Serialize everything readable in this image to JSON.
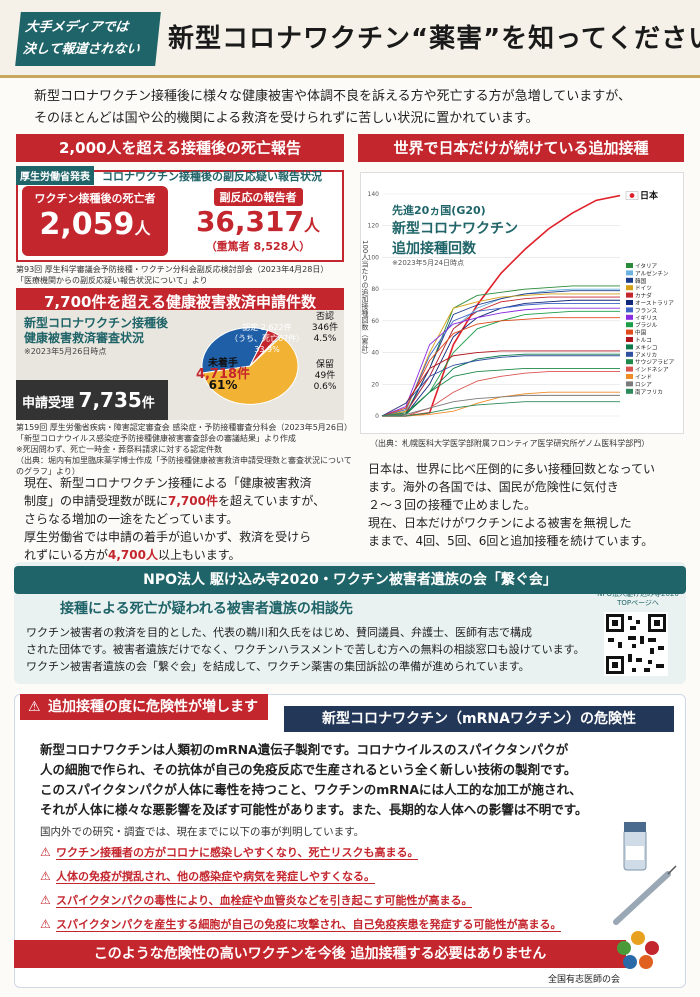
{
  "header": {
    "tag_line1": "大手メディアでは",
    "tag_line2": "決して報道されない",
    "title": "新型コロナワクチン“薬害”を知ってください"
  },
  "intro": {
    "line1": "新型コロナワクチン接種後に様々な健康被害や体調不良を訴える方や死亡する方が急増していますが、",
    "line2": "そのほとんどは国や公的機関による救済を受けられずに苦しい状況に置かれています。"
  },
  "deaths": {
    "heading": "2,000人を超える接種後の死亡報告",
    "mhlw_tag": "厚生労働省発表",
    "subtitle": "コロナワクチン接種後の副反応疑い報告状況",
    "deaths_label": "ワクチン接種後の死亡者",
    "deaths_value": "2,059",
    "deaths_unit": "人",
    "reports_label": "副反応の報告者",
    "reports_value": "36,317",
    "reports_unit": "人",
    "severe": "（重篤者 8,528人）",
    "source1": "第93回 厚生科学審議会予防接種・ワクチン分科会副反応検討部会（2023年4月28日）",
    "source2": "「医療機関からの副反応疑い報告状況について」より"
  },
  "relief": {
    "heading": "7,700件を超える健康被害救済申請件数",
    "box_title1": "新型コロナワクチン接種後",
    "box_title2": "健康被害救済審査状況",
    "box_date": "※2023年5月26日時点",
    "unstarted_label": "未着手",
    "unstarted_value": "4,718件",
    "unstarted_pct": "61%",
    "approved_label": "認定 2,622件",
    "approved_sub": "（うち、死亡67件）",
    "approved_pct": "33.9%",
    "denied_label": "否認",
    "denied_value": "346件",
    "denied_pct": "4.5%",
    "hold_label": "保留",
    "hold_value": "49件",
    "hold_pct": "0.6%",
    "received_label": "申請受理",
    "received_value": "7,735",
    "received_unit": "件",
    "source1": "第159回 厚生労働省疾病・障害認定審査会 感染症・予防接種審査分科会（2023年5月26日）",
    "source2": "「新型コロナウイルス感染症予防接種健康被害審査部会の審議結果」より作成",
    "source3": "※死因問わず、死亡一時金・葬祭料請求に対する認定件数",
    "source4": "（出典：堀内有加里臨床薬学博士作成「予防接種健康被害救済申請受理数と審査状況についてのグラフ」より）",
    "pie_colors": {
      "unstarted": "#f2b233",
      "approved": "#1f5fa8",
      "denied": "#c4262e",
      "hold": "#555555"
    }
  },
  "left_body": {
    "p1_a": "現在、新型コロナワクチン接種による「健康被害救済",
    "p1_b": "制度」の申請受理数が既に",
    "p1_red": "7,700件",
    "p1_c": "を超えていますが、",
    "p1_d": "さらなる増加の一途をたどっています。",
    "p2_a": "厚生労働省では申請の着手が追いかず、救済を受けら",
    "p2_b": "れずにいる方が",
    "p2_red": "4,700人",
    "p2_c": "以上もいます。"
  },
  "booster": {
    "heading": "世界で日本だけが続けている追加接種",
    "chart_title1": "先進20ヵ国(G20)",
    "chart_title2": "新型コロナワクチン",
    "chart_title3": "追加接種回数",
    "chart_date": "※2023年5月24日時点",
    "ylabel": "100人当たりの追加接種回数（累計）",
    "source": "（出典：札幌医科大学医学部附属フロンティア医学研究所ゲノム医科学部門）"
  },
  "chart_data": {
    "type": "line",
    "title": "先進20ヵ国(G20) 新型コロナワクチン 追加接種回数",
    "ylabel": "100人当たりの追加接種回数（累計）",
    "ylim": [
      0,
      140
    ],
    "yticks": [
      0,
      20,
      40,
      60,
      80,
      100,
      120,
      140
    ],
    "x": [
      0,
      1,
      2,
      3,
      4,
      5,
      6,
      7,
      8,
      9,
      10
    ],
    "series": [
      {
        "name": "日本",
        "color": "#e0202a",
        "values": [
          0,
          0,
          2,
          45,
          70,
          90,
          105,
          118,
          128,
          136,
          139
        ]
      },
      {
        "name": "イタリア",
        "color": "#2a8c3a",
        "values": [
          0,
          2,
          30,
          68,
          76,
          78,
          80,
          81,
          82,
          82,
          82
        ]
      },
      {
        "name": "アルゼンチン",
        "color": "#6bb3e0",
        "values": [
          0,
          3,
          25,
          55,
          68,
          74,
          77,
          79,
          80,
          80,
          80
        ]
      },
      {
        "name": "韓国",
        "color": "#1a3a8a",
        "values": [
          0,
          1,
          30,
          64,
          70,
          74,
          77,
          78,
          79,
          79,
          79
        ]
      },
      {
        "name": "ドイツ",
        "color": "#d4a017",
        "values": [
          0,
          3,
          40,
          68,
          72,
          75,
          76,
          77,
          77,
          77,
          77
        ]
      },
      {
        "name": "カナダ",
        "color": "#c4262e",
        "values": [
          0,
          2,
          25,
          55,
          66,
          72,
          74,
          75,
          75,
          75,
          75
        ]
      },
      {
        "name": "オーストラリア",
        "color": "#12287a",
        "values": [
          0,
          1,
          20,
          50,
          62,
          68,
          71,
          72,
          73,
          73,
          73
        ]
      },
      {
        "name": "フランス",
        "color": "#3e64c8",
        "values": [
          0,
          4,
          38,
          60,
          66,
          68,
          70,
          71,
          71,
          71,
          71
        ]
      },
      {
        "name": "イギリス",
        "color": "#8a2be2",
        "values": [
          0,
          6,
          45,
          58,
          62,
          65,
          67,
          68,
          68,
          68,
          68
        ]
      },
      {
        "name": "ブラジル",
        "color": "#1b9e47",
        "values": [
          0,
          1,
          15,
          40,
          55,
          60,
          64,
          65,
          66,
          66,
          66
        ]
      },
      {
        "name": "中国",
        "color": "#e04a1a",
        "values": [
          0,
          5,
          35,
          52,
          58,
          60,
          61,
          62,
          62,
          62,
          62
        ]
      },
      {
        "name": "トルコ",
        "color": "#b0151c",
        "values": [
          0,
          8,
          30,
          38,
          40,
          41,
          41,
          41,
          41,
          41,
          41
        ]
      },
      {
        "name": "メキシコ",
        "color": "#0d7a4e",
        "values": [
          0,
          1,
          15,
          30,
          36,
          38,
          39,
          39,
          39,
          39,
          39
        ]
      },
      {
        "name": "アメリカ",
        "color": "#3050a0",
        "values": [
          0,
          8,
          25,
          32,
          35,
          37,
          38,
          38,
          38,
          38,
          38
        ]
      },
      {
        "name": "サウジアラビア",
        "color": "#20884a",
        "values": [
          0,
          2,
          15,
          25,
          28,
          29,
          30,
          30,
          30,
          30,
          30
        ]
      },
      {
        "name": "インドネシア",
        "color": "#d9534f",
        "values": [
          0,
          0,
          5,
          15,
          22,
          25,
          27,
          28,
          28,
          28,
          28
        ]
      },
      {
        "name": "インド",
        "color": "#f08c28",
        "values": [
          0,
          0,
          1,
          3,
          8,
          12,
          14,
          15,
          15,
          15,
          15
        ]
      },
      {
        "name": "ロシア",
        "color": "#7a7a7a",
        "values": [
          0,
          1,
          5,
          9,
          11,
          12,
          13,
          13,
          13,
          13,
          13
        ]
      },
      {
        "name": "南アフリカ",
        "color": "#2d8a5a",
        "values": [
          0,
          0,
          2,
          5,
          7,
          8,
          9,
          9,
          9,
          9,
          9
        ]
      }
    ]
  },
  "right_body": {
    "p1_a": "日本は、世界に比べ圧倒的に多い接種回数となってい",
    "p1_b": "ます。海外の各国では、国民が危険性に気付き",
    "p1_c": "２〜３回の接種で止めました。",
    "p2_a": "現在、日本だけがワクチンによる被害を無視した",
    "p2_b": "ままで、4回、5回、6回と追加接種を続けています。"
  },
  "npo": {
    "heading": "NPO法人 駆け込み寺2020・ワクチン被害者遺族の会「繋ぐ会」",
    "sub": "接種による死亡が疑われる被害者遺族の相談先",
    "qr_label1": "NPO法人駆け込み寺2020",
    "qr_label2": "TOPページへ",
    "line1": "ワクチン被害者の救済を目的とした、代表の鵜川和久氏をはじめ、賛同議員、弁護士、医師有志で構成",
    "line2": "された団体です。被害者遺族だけでなく、ワクチンハラスメントで苦しむ方への無料の相談窓口も設けています。",
    "line3": "ワクチン被害者遺族の会「繋ぐ会」を結成して、ワクチン薬害の集団訴訟の準備が進められています。"
  },
  "danger": {
    "tag": "追加接種の度に危険性が増します",
    "title": "新型コロナワクチン（mRNAワクチン）の危険性",
    "p1": "新型コロナワクチンは人類初のmRNA遺伝子製剤です。コロナウイルスのスパイクタンパクが",
    "p2": "人の細胞で作られ、その抗体が自己の免疫反応で生産されるという全く新しい技術の製剤です。",
    "p3": "このスパイクタンパクが人体に毒性を持つこと、ワクチンのmRNAには人工的な加工が施され、",
    "p4": "それが人体に様々な悪影響を及ぼす可能性があります。また、長期的な人体への影響は不明です。",
    "found": "国内外での研究・調査では、現在までに以下の事が判明しています。",
    "risks": [
      "ワクチン接種者の方がコロナに感染しやすくなり、死亡リスクも高まる。",
      "人体の免疫が撹乱され、他の感染症や病気を発症しやすくなる。",
      "スパイクタンパクの毒性により、血栓症や血管炎などを引き起こす可能性が高まる。",
      "スパイクタンパクを産生する細胞が自己の免疫に攻撃され、自己免疫疾患を発症する可能性が高まる。"
    ],
    "banner": "このような危険性の高いワクチンを今後 追加接種する必要はありません",
    "org": "全国有志医師の会"
  }
}
